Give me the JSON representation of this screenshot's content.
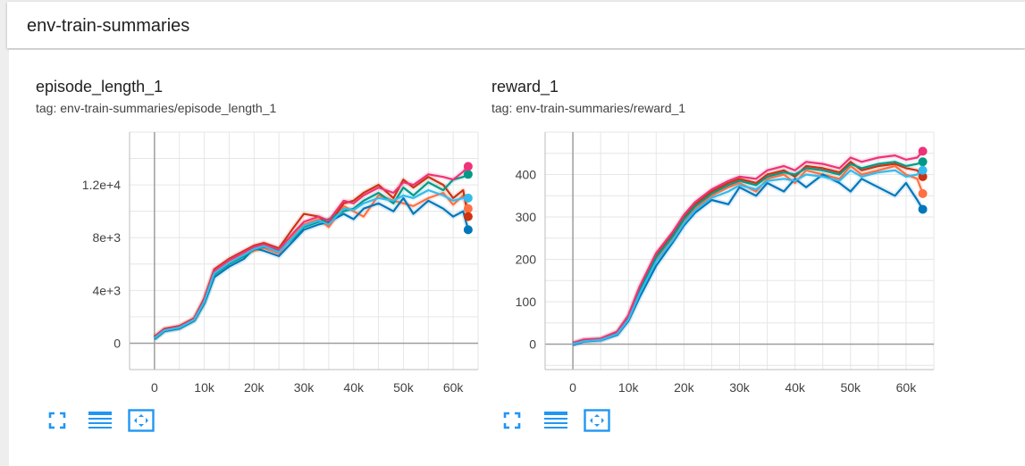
{
  "header": {
    "title": "env-train-summaries"
  },
  "colors": {
    "orange": "#ff7043",
    "blue": "#0077bb",
    "red": "#cc3311",
    "teal": "#009988",
    "magenta": "#ee3377",
    "cyan": "#33bbee",
    "axis": "#9e9e9e",
    "grid": "#e6e6e6",
    "button": "#2196f3"
  },
  "toolbar_icons": [
    "fullscreen-icon",
    "toggle-log-icon",
    "fit-domain-icon"
  ],
  "chart_data": [
    {
      "type": "line",
      "title": "episode_length_1",
      "tag": "tag: env-train-summaries/episode_length_1",
      "xlim": [
        -5000,
        65000
      ],
      "ylim": [
        -2000,
        16000
      ],
      "x_ticks": [
        0,
        10000,
        20000,
        30000,
        40000,
        50000,
        60000
      ],
      "x_tick_labels": [
        "0",
        "10k",
        "20k",
        "30k",
        "40k",
        "50k",
        "60k"
      ],
      "y_ticks": [
        0,
        4000,
        8000,
        12000
      ],
      "y_tick_labels": [
        "0",
        "4e+3",
        "8e+3",
        "1.2e+4"
      ],
      "grid": true,
      "series": [
        {
          "color": "orange",
          "x": [
            0,
            2000,
            5000,
            8000,
            10000,
            12000,
            15000,
            18000,
            20000,
            22000,
            25000,
            28000,
            30000,
            33000,
            35000,
            38000,
            40000,
            42000,
            45000,
            48000,
            50000,
            52000,
            55000,
            58000,
            60000,
            62000,
            63000
          ],
          "y": [
            400,
            1000,
            1200,
            1800,
            3200,
            5400,
            6200,
            6800,
            7000,
            7200,
            6800,
            8200,
            9000,
            9400,
            8800,
            10400,
            10000,
            9600,
            11200,
            10800,
            10600,
            10400,
            11000,
            11400,
            10500,
            11200,
            10200
          ],
          "final": 10200
        },
        {
          "color": "blue",
          "x": [
            0,
            2000,
            5000,
            8000,
            10000,
            12000,
            15000,
            18000,
            20000,
            22000,
            25000,
            28000,
            30000,
            33000,
            35000,
            38000,
            40000,
            42000,
            45000,
            48000,
            50000,
            52000,
            55000,
            58000,
            60000,
            62000,
            63000
          ],
          "y": [
            300,
            900,
            1100,
            1700,
            3000,
            5000,
            5800,
            6400,
            7200,
            7000,
            6600,
            7800,
            8600,
            9000,
            9200,
            9800,
            9400,
            10200,
            10600,
            10000,
            11000,
            9800,
            10800,
            10200,
            9600,
            10000,
            8600
          ],
          "final": 8600
        },
        {
          "color": "red",
          "x": [
            0,
            2000,
            5000,
            8000,
            10000,
            12000,
            15000,
            18000,
            20000,
            22000,
            25000,
            28000,
            30000,
            33000,
            35000,
            38000,
            40000,
            42000,
            45000,
            48000,
            50000,
            52000,
            55000,
            58000,
            60000,
            62000,
            63000
          ],
          "y": [
            500,
            1100,
            1300,
            1900,
            3400,
            5600,
            6400,
            7000,
            7400,
            7600,
            7200,
            8800,
            9800,
            9600,
            9000,
            10600,
            10800,
            11400,
            12000,
            11000,
            12400,
            11800,
            12600,
            12000,
            11000,
            11600,
            9600
          ],
          "final": 9600
        },
        {
          "color": "teal",
          "x": [
            0,
            2000,
            5000,
            8000,
            10000,
            12000,
            15000,
            18000,
            20000,
            22000,
            25000,
            28000,
            30000,
            33000,
            35000,
            38000,
            40000,
            42000,
            45000,
            48000,
            50000,
            52000,
            55000,
            58000,
            60000,
            62000,
            63000
          ],
          "y": [
            350,
            950,
            1150,
            1750,
            3100,
            5200,
            6000,
            6600,
            7100,
            7300,
            7000,
            8000,
            8800,
            9200,
            9400,
            10000,
            10200,
            10800,
            11400,
            10600,
            11800,
            11200,
            12200,
            11600,
            12400,
            12600,
            12800
          ],
          "final": 12800
        },
        {
          "color": "magenta",
          "x": [
            0,
            2000,
            5000,
            8000,
            10000,
            12000,
            15000,
            18000,
            20000,
            22000,
            25000,
            28000,
            30000,
            33000,
            35000,
            38000,
            40000,
            42000,
            45000,
            48000,
            50000,
            52000,
            55000,
            58000,
            60000,
            62000,
            63000
          ],
          "y": [
            450,
            1050,
            1250,
            1850,
            3300,
            5500,
            6300,
            6900,
            7300,
            7500,
            7100,
            8400,
            9200,
            9600,
            9300,
            10800,
            10600,
            11200,
            11800,
            11400,
            12200,
            12000,
            12800,
            12600,
            12400,
            13000,
            13400
          ],
          "final": 13400
        },
        {
          "color": "cyan",
          "x": [
            0,
            2000,
            5000,
            8000,
            10000,
            12000,
            15000,
            18000,
            20000,
            22000,
            25000,
            28000,
            30000,
            33000,
            35000,
            38000,
            40000,
            42000,
            45000,
            48000,
            50000,
            52000,
            55000,
            58000,
            60000,
            62000,
            63000
          ],
          "y": [
            380,
            980,
            1180,
            1780,
            3150,
            5300,
            6100,
            6700,
            7150,
            7350,
            6900,
            8100,
            8900,
            9300,
            9000,
            10200,
            10100,
            10600,
            11000,
            10800,
            11200,
            11000,
            11600,
            11200,
            10800,
            11000,
            11000
          ],
          "final": 11000
        }
      ]
    },
    {
      "type": "line",
      "title": "reward_1",
      "tag": "tag: env-train-summaries/reward_1",
      "xlim": [
        -5000,
        65000
      ],
      "ylim": [
        -60,
        500
      ],
      "x_ticks": [
        0,
        10000,
        20000,
        30000,
        40000,
        50000,
        60000
      ],
      "x_tick_labels": [
        "0",
        "10k",
        "20k",
        "30k",
        "40k",
        "50k",
        "60k"
      ],
      "y_ticks": [
        0,
        100,
        200,
        300,
        400
      ],
      "y_tick_labels": [
        "0",
        "100",
        "200",
        "300",
        "400"
      ],
      "grid": true,
      "series": [
        {
          "color": "orange",
          "x": [
            0,
            2000,
            5000,
            8000,
            10000,
            12000,
            15000,
            18000,
            20000,
            22000,
            25000,
            28000,
            30000,
            33000,
            35000,
            38000,
            40000,
            42000,
            45000,
            48000,
            50000,
            52000,
            55000,
            58000,
            60000,
            62000,
            63000
          ],
          "y": [
            0,
            8,
            10,
            25,
            60,
            120,
            200,
            250,
            290,
            320,
            350,
            370,
            380,
            360,
            390,
            400,
            380,
            410,
            400,
            390,
            420,
            400,
            410,
            420,
            400,
            390,
            355
          ],
          "final": 355
        },
        {
          "color": "blue",
          "x": [
            0,
            2000,
            5000,
            8000,
            10000,
            12000,
            15000,
            18000,
            20000,
            22000,
            25000,
            28000,
            30000,
            33000,
            35000,
            38000,
            40000,
            42000,
            45000,
            48000,
            50000,
            52000,
            55000,
            58000,
            60000,
            62000,
            63000
          ],
          "y": [
            -2,
            6,
            9,
            22,
            55,
            110,
            185,
            240,
            280,
            310,
            340,
            330,
            370,
            350,
            380,
            360,
            390,
            370,
            400,
            380,
            360,
            390,
            370,
            350,
            380,
            340,
            318
          ],
          "final": 318
        },
        {
          "color": "red",
          "x": [
            0,
            2000,
            5000,
            8000,
            10000,
            12000,
            15000,
            18000,
            20000,
            22000,
            25000,
            28000,
            30000,
            33000,
            35000,
            38000,
            40000,
            42000,
            45000,
            48000,
            50000,
            52000,
            55000,
            58000,
            60000,
            62000,
            63000
          ],
          "y": [
            2,
            10,
            12,
            28,
            65,
            130,
            210,
            260,
            300,
            330,
            360,
            380,
            390,
            380,
            400,
            410,
            395,
            420,
            415,
            405,
            430,
            410,
            420,
            425,
            415,
            410,
            395
          ],
          "final": 395
        },
        {
          "color": "teal",
          "x": [
            0,
            2000,
            5000,
            8000,
            10000,
            12000,
            15000,
            18000,
            20000,
            22000,
            25000,
            28000,
            30000,
            33000,
            35000,
            38000,
            40000,
            42000,
            45000,
            48000,
            50000,
            52000,
            55000,
            58000,
            60000,
            62000,
            63000
          ],
          "y": [
            1,
            9,
            11,
            26,
            62,
            125,
            205,
            255,
            295,
            325,
            355,
            375,
            385,
            375,
            395,
            405,
            400,
            415,
            410,
            400,
            425,
            415,
            425,
            430,
            420,
            425,
            430
          ],
          "final": 430
        },
        {
          "color": "magenta",
          "x": [
            0,
            2000,
            5000,
            8000,
            10000,
            12000,
            15000,
            18000,
            20000,
            22000,
            25000,
            28000,
            30000,
            33000,
            35000,
            38000,
            40000,
            42000,
            45000,
            48000,
            50000,
            52000,
            55000,
            58000,
            60000,
            62000,
            63000
          ],
          "y": [
            3,
            11,
            13,
            30,
            68,
            135,
            215,
            265,
            305,
            335,
            365,
            385,
            395,
            390,
            410,
            420,
            410,
            430,
            425,
            415,
            440,
            430,
            440,
            445,
            435,
            440,
            455
          ],
          "final": 455
        },
        {
          "color": "cyan",
          "x": [
            0,
            2000,
            5000,
            8000,
            10000,
            12000,
            15000,
            18000,
            20000,
            22000,
            25000,
            28000,
            30000,
            33000,
            35000,
            38000,
            40000,
            42000,
            45000,
            48000,
            50000,
            52000,
            55000,
            58000,
            60000,
            62000,
            63000
          ],
          "y": [
            0,
            7,
            10,
            24,
            58,
            118,
            195,
            245,
            285,
            315,
            345,
            360,
            375,
            365,
            385,
            390,
            385,
            400,
            395,
            385,
            410,
            395,
            405,
            410,
            395,
            400,
            410
          ],
          "final": 410
        }
      ]
    }
  ]
}
